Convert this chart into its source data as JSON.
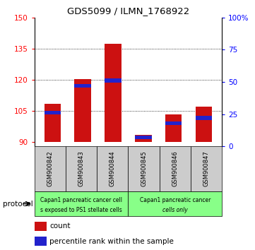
{
  "title": "GDS5099 / ILMN_1768922",
  "samples": [
    "GSM900842",
    "GSM900843",
    "GSM900844",
    "GSM900845",
    "GSM900846",
    "GSM900847"
  ],
  "count_values": [
    108.5,
    120.5,
    137.5,
    93.5,
    103.5,
    107.0
  ],
  "percentile_values": [
    26.0,
    47.0,
    51.0,
    7.0,
    18.0,
    22.0
  ],
  "ylim_left": [
    88,
    150
  ],
  "ylim_right": [
    0,
    100
  ],
  "yticks_left": [
    90,
    105,
    120,
    135,
    150
  ],
  "yticks_right": [
    0,
    25,
    50,
    75,
    100
  ],
  "ytick_labels_right": [
    "0",
    "25",
    "50",
    "75",
    "100%"
  ],
  "bar_bottom": 90,
  "bar_width": 0.55,
  "color_count": "#cc1111",
  "color_percentile": "#2222cc",
  "group1_label_line1": "Capan1 pancreatic cancer cell",
  "group1_label_line2": "s exposed to PS1 stellate cells",
  "group2_label_line1": "Capan1 pancreatic cancer",
  "group2_label_line2": "cells only",
  "group_bg_color": "#88ff88",
  "sample_bg_color": "#cccccc",
  "legend_count_label": "count",
  "legend_percentile_label": "percentile rank within the sample",
  "protocol_label": "protocol",
  "dotted_lines": [
    105,
    120,
    135
  ]
}
